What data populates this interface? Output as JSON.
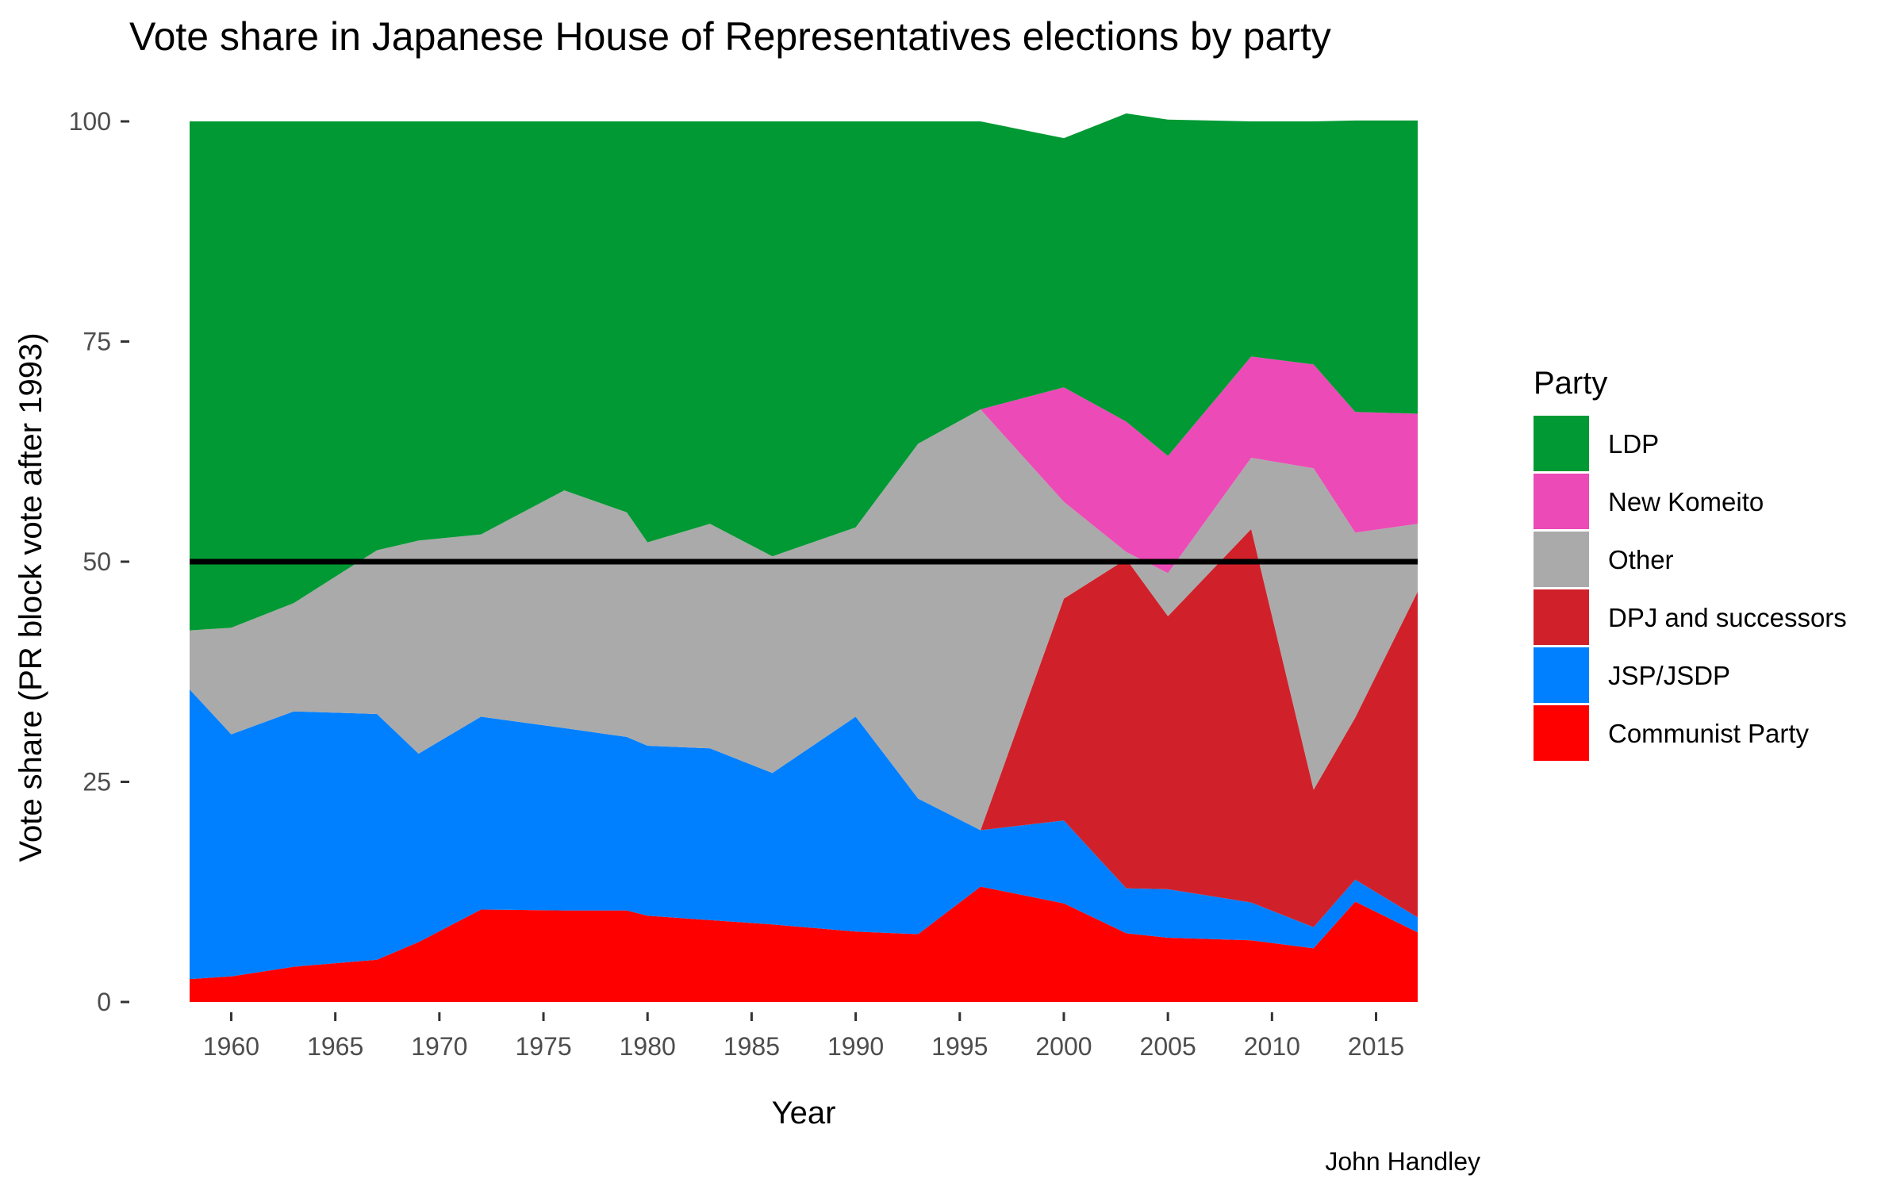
{
  "chart_data": {
    "type": "area",
    "stacked": true,
    "title": "Vote share in Japanese House of Representatives elections by party",
    "xlabel": "Year",
    "ylabel": "Vote share (PR block vote after 1993)",
    "caption": "John Handley",
    "xlim": [
      1958,
      2017
    ],
    "ylim": [
      0,
      100
    ],
    "x_ticks": [
      1960,
      1965,
      1970,
      1975,
      1980,
      1985,
      1990,
      1995,
      2000,
      2005,
      2010,
      2015
    ],
    "y_ticks": [
      0,
      25,
      50,
      75,
      100
    ],
    "reference_line": 50,
    "grid": false,
    "legend": {
      "title": "Party",
      "position": "right"
    },
    "x": [
      1958,
      1960,
      1963,
      1967,
      1969,
      1972,
      1976,
      1979,
      1980,
      1983,
      1986,
      1990,
      1993,
      1996,
      2000,
      2003,
      2005,
      2009,
      2012,
      2014,
      2017
    ],
    "series": [
      {
        "name": "Communist Party",
        "color": "#ff0000",
        "values": [
          2.6,
          2.9,
          4.0,
          4.8,
          6.8,
          10.5,
          10.4,
          10.4,
          9.8,
          9.3,
          8.8,
          8.0,
          7.7,
          13.1,
          11.2,
          7.8,
          7.3,
          7.0,
          6.1,
          11.4,
          7.9
        ]
      },
      {
        "name": "JSP/JSDP",
        "color": "#0080ff",
        "values": [
          32.9,
          27.5,
          29.0,
          27.9,
          21.4,
          21.9,
          20.7,
          19.7,
          19.3,
          19.5,
          17.2,
          24.4,
          15.4,
          6.4,
          9.4,
          5.1,
          5.5,
          4.3,
          2.4,
          2.5,
          1.7
        ]
      },
      {
        "name": "DPJ and successors",
        "color": "#d0212a",
        "values": [
          0,
          0,
          0,
          0,
          0,
          0,
          0,
          0,
          0,
          0,
          0,
          0,
          0,
          0,
          25.2,
          37.4,
          31.0,
          42.4,
          15.6,
          18.4,
          37.0
        ]
      },
      {
        "name": "Other",
        "color": "#aaaaaa",
        "values": [
          6.7,
          12.1,
          12.3,
          18.6,
          24.2,
          20.7,
          27.0,
          25.5,
          23.1,
          25.5,
          24.6,
          21.5,
          40.3,
          47.8,
          11.0,
          0.8,
          4.9,
          8.1,
          36.5,
          21.0,
          7.7
        ]
      },
      {
        "name": "New Komeito",
        "color": "#ec4ab6",
        "values": [
          0,
          0,
          0,
          0,
          0,
          0,
          0,
          0,
          0,
          0,
          0,
          0,
          0,
          0,
          13.0,
          14.8,
          13.3,
          11.5,
          11.8,
          13.7,
          12.5
        ]
      },
      {
        "name": "LDP",
        "color": "#009933",
        "values": [
          57.8,
          57.5,
          54.7,
          48.7,
          47.6,
          46.9,
          41.9,
          44.4,
          47.8,
          45.7,
          49.4,
          46.1,
          36.6,
          32.7,
          28.3,
          35.0,
          38.2,
          26.7,
          27.6,
          33.1,
          33.3
        ]
      }
    ],
    "legend_order": [
      "LDP",
      "New Komeito",
      "Other",
      "DPJ and successors",
      "JSP/JSDP",
      "Communist Party"
    ]
  }
}
